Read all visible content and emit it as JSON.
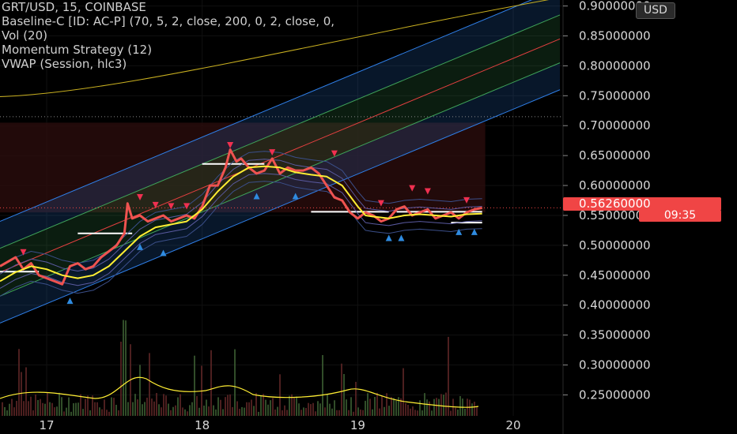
{
  "legend": {
    "symbol": "GRT/USD, 15, COINBASE",
    "baseline": "Baseline-C [ID: AC-P] (70, 5, 2, close, 200, 0, 2, close, 0,",
    "volume": "Vol (20)",
    "momentum": "Momentum Strategy (12)",
    "vwap": "VWAP (Session, hlc3)"
  },
  "currency_button": "USD",
  "price_badge": {
    "price": "0.56260000",
    "countdown": "09:35"
  },
  "colors": {
    "price": "#ef5350",
    "ma": "#ffee33",
    "channel_blue": "#2f7fe8",
    "channel_green": "#3fa35a",
    "channel_red": "#e64040",
    "badge": "#f04545",
    "axis_text": "#d8d8d8",
    "sell_marker": "#f03050",
    "buy_marker": "#2f8be0"
  },
  "chart_data": {
    "type": "line",
    "y_axis": {
      "ticks": [
        0.9,
        0.85,
        0.8,
        0.75,
        0.7,
        0.65,
        0.6,
        0.55,
        0.5,
        0.45,
        0.4,
        0.35,
        0.3,
        0.25
      ],
      "tick_labels": [
        "0.90000000",
        "0.85000000",
        "0.80000000",
        "0.75000000",
        "0.70000000",
        "0.65000000",
        "0.60000000",
        "0.55000000",
        "0.50000000",
        "0.45000000",
        "0.40000000",
        "0.35000000",
        "0.30000000",
        "0.25000000"
      ],
      "ylim": [
        0.215,
        0.91
      ]
    },
    "x_axis": {
      "ticks": [
        17,
        18,
        19,
        20
      ],
      "tick_labels": [
        "17",
        "18",
        "19",
        "20"
      ],
      "xlim": [
        16.7,
        20.32
      ]
    },
    "last_price": 0.5626,
    "series": [
      {
        "role": "price",
        "x": [
          16.7,
          16.8,
          16.85,
          16.9,
          16.95,
          17.0,
          17.05,
          17.1,
          17.15,
          17.2,
          17.25,
          17.3,
          17.35,
          17.4,
          17.45,
          17.5,
          17.52,
          17.55,
          17.6,
          17.65,
          17.7,
          17.75,
          17.8,
          17.85,
          17.9,
          17.95,
          18.0,
          18.05,
          18.1,
          18.15,
          18.18,
          18.22,
          18.25,
          18.3,
          18.35,
          18.4,
          18.45,
          18.5,
          18.55,
          18.6,
          18.65,
          18.7,
          18.75,
          18.8,
          18.85,
          18.9,
          18.95,
          19.0,
          19.05,
          19.1,
          19.15,
          19.2,
          19.25,
          19.3,
          19.35,
          19.4,
          19.45,
          19.5,
          19.55,
          19.6,
          19.65,
          19.7,
          19.75,
          19.8
        ],
        "y": [
          0.465,
          0.48,
          0.46,
          0.47,
          0.45,
          0.445,
          0.44,
          0.435,
          0.465,
          0.47,
          0.46,
          0.465,
          0.48,
          0.49,
          0.5,
          0.52,
          0.57,
          0.545,
          0.55,
          0.54,
          0.545,
          0.55,
          0.54,
          0.545,
          0.55,
          0.545,
          0.565,
          0.6,
          0.6,
          0.63,
          0.66,
          0.64,
          0.645,
          0.63,
          0.62,
          0.625,
          0.645,
          0.62,
          0.63,
          0.625,
          0.625,
          0.63,
          0.62,
          0.6,
          0.58,
          0.575,
          0.555,
          0.545,
          0.555,
          0.55,
          0.54,
          0.545,
          0.56,
          0.565,
          0.55,
          0.555,
          0.56,
          0.545,
          0.55,
          0.555,
          0.545,
          0.555,
          0.56,
          0.5626
        ]
      },
      {
        "role": "moving-average",
        "x": [
          16.7,
          16.8,
          16.9,
          17.0,
          17.1,
          17.2,
          17.3,
          17.4,
          17.5,
          17.6,
          17.7,
          17.8,
          17.9,
          18.0,
          18.1,
          18.2,
          18.3,
          18.4,
          18.5,
          18.6,
          18.7,
          18.8,
          18.9,
          19.0,
          19.05,
          19.1,
          19.2,
          19.3,
          19.4,
          19.5,
          19.6,
          19.7,
          19.8
        ],
        "y": [
          0.44,
          0.455,
          0.465,
          0.46,
          0.45,
          0.445,
          0.45,
          0.465,
          0.49,
          0.515,
          0.53,
          0.535,
          0.54,
          0.56,
          0.59,
          0.615,
          0.63,
          0.632,
          0.63,
          0.622,
          0.618,
          0.615,
          0.6,
          0.565,
          0.55,
          0.548,
          0.545,
          0.55,
          0.552,
          0.55,
          0.548,
          0.552,
          0.553
        ]
      }
    ],
    "regression_channel": {
      "x": [
        16.7,
        20.3
      ],
      "center": [
        0.455,
        0.845
      ],
      "offsets": [
        0.04,
        0.085
      ]
    }
  }
}
